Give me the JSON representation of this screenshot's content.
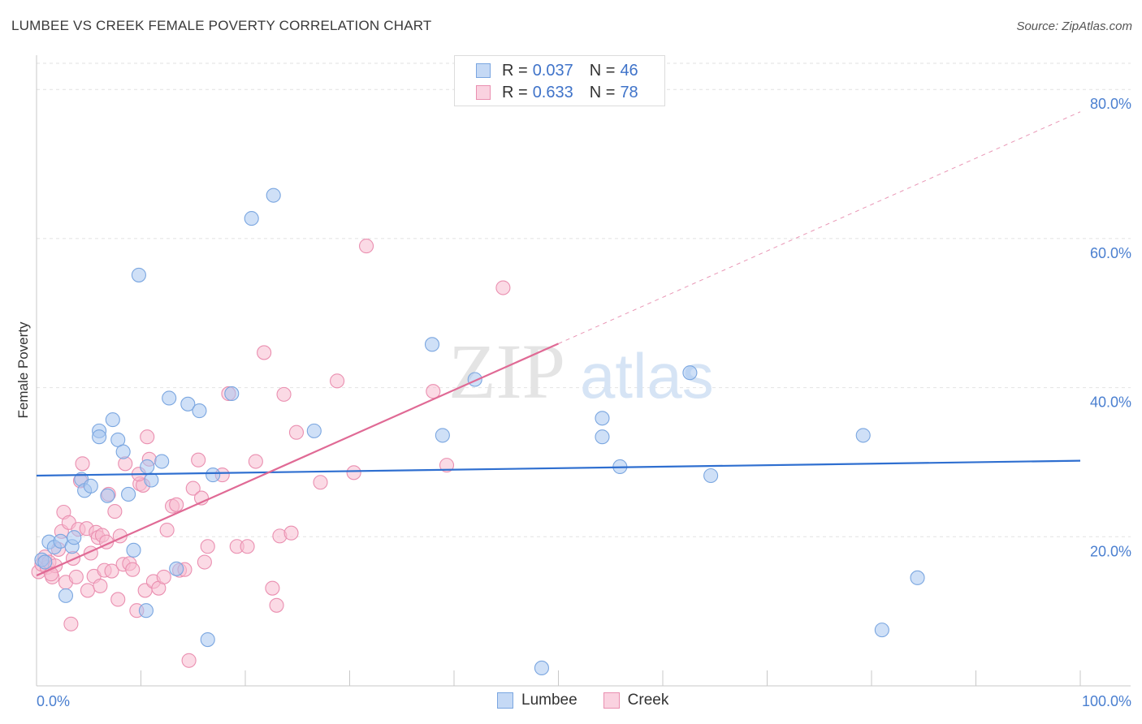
{
  "header": {
    "title": "LUMBEE VS CREEK FEMALE POVERTY CORRELATION CHART",
    "source": "Source: ZipAtlas.com"
  },
  "watermark": {
    "zip": "ZIP",
    "atlas": "atlas"
  },
  "legend": {
    "rows": [
      {
        "r_label": "R =",
        "r_value": "0.037",
        "n_label": "N =",
        "n_value": "46",
        "color": "#a8c6f0",
        "border": "#7aa6e0"
      },
      {
        "r_label": "R =",
        "r_value": "0.633",
        "n_label": "N =",
        "n_value": "78",
        "color": "#f7bcd0",
        "border": "#ea8fb0"
      }
    ]
  },
  "bottom_legend": {
    "items": [
      {
        "label": "Lumbee",
        "color": "#a8c6f0",
        "border": "#7aa6e0"
      },
      {
        "label": "Creek",
        "color": "#f7bcd0",
        "border": "#ea8fb0"
      }
    ]
  },
  "chart_data": {
    "type": "scatter",
    "title": "LUMBEE VS CREEK FEMALE POVERTY CORRELATION CHART",
    "xlabel": "",
    "ylabel": "Female Poverty",
    "xlim": [
      0,
      100
    ],
    "ylim": [
      0,
      80
    ],
    "x_tick_labels": [
      "0.0%",
      "100.0%"
    ],
    "y_tick_labels": [
      "20.0%",
      "40.0%",
      "60.0%",
      "80.0%"
    ],
    "y_ticks": [
      20,
      40,
      60,
      80
    ],
    "grid": true,
    "legend_position": "top-center",
    "series": [
      {
        "name": "Lumbee",
        "color": "#a8c6f0",
        "stroke": "#7aa6e0",
        "trend_color": "#2f6fd0",
        "trend": {
          "x": [
            0,
            100
          ],
          "y": [
            28.2,
            30.2
          ]
        },
        "points": [
          [
            0.5,
            16.9
          ],
          [
            1.2,
            19.3
          ],
          [
            1.7,
            18.6
          ],
          [
            2.3,
            19.4
          ],
          [
            2.8,
            12.1
          ],
          [
            3.4,
            18.7
          ],
          [
            3.6,
            19.9
          ],
          [
            4.3,
            27.7
          ],
          [
            4.6,
            26.2
          ],
          [
            5.2,
            26.8
          ],
          [
            6.0,
            34.2
          ],
          [
            6.0,
            33.4
          ],
          [
            6.8,
            25.5
          ],
          [
            7.3,
            35.7
          ],
          [
            7.8,
            33.0
          ],
          [
            8.3,
            31.4
          ],
          [
            8.8,
            25.7
          ],
          [
            9.3,
            18.2
          ],
          [
            9.8,
            55.1
          ],
          [
            10.5,
            10.1
          ],
          [
            10.6,
            29.4
          ],
          [
            11.0,
            27.6
          ],
          [
            12.0,
            30.1
          ],
          [
            12.7,
            38.6
          ],
          [
            13.4,
            15.7
          ],
          [
            14.5,
            37.8
          ],
          [
            15.6,
            36.9
          ],
          [
            16.4,
            6.2
          ],
          [
            16.9,
            28.3
          ],
          [
            18.7,
            39.2
          ],
          [
            20.6,
            62.7
          ],
          [
            22.7,
            65.8
          ],
          [
            26.6,
            34.2
          ],
          [
            37.9,
            45.8
          ],
          [
            38.9,
            33.6
          ],
          [
            42.0,
            41.1
          ],
          [
            48.4,
            2.4
          ],
          [
            54.2,
            35.9
          ],
          [
            54.2,
            33.4
          ],
          [
            55.9,
            29.4
          ],
          [
            62.6,
            42.0
          ],
          [
            64.6,
            28.2
          ],
          [
            79.2,
            33.6
          ],
          [
            81.0,
            7.5
          ],
          [
            84.4,
            14.5
          ],
          [
            0.8,
            16.6
          ]
        ]
      },
      {
        "name": "Creek",
        "color": "#f7bcd0",
        "stroke": "#ea8fb0",
        "trend_color": "#e06a95",
        "trend": {
          "x": [
            0,
            50
          ],
          "y": [
            14.8,
            45.9
          ]
        },
        "trend_dashed": {
          "x": [
            50,
            100
          ],
          "y": [
            45.9,
            77.0
          ]
        },
        "points": [
          [
            0.2,
            15.3
          ],
          [
            0.5,
            16.3
          ],
          [
            0.8,
            17.3
          ],
          [
            1.0,
            15.9
          ],
          [
            1.2,
            16.6
          ],
          [
            1.5,
            14.6
          ],
          [
            1.8,
            16.1
          ],
          [
            2.1,
            18.3
          ],
          [
            2.4,
            20.7
          ],
          [
            2.6,
            23.3
          ],
          [
            2.8,
            13.9
          ],
          [
            3.1,
            21.9
          ],
          [
            3.3,
            8.3
          ],
          [
            3.5,
            17.1
          ],
          [
            3.8,
            14.6
          ],
          [
            4.0,
            21.0
          ],
          [
            4.2,
            27.5
          ],
          [
            4.4,
            29.8
          ],
          [
            4.8,
            21.1
          ],
          [
            4.9,
            12.8
          ],
          [
            5.2,
            17.8
          ],
          [
            5.5,
            14.7
          ],
          [
            5.7,
            20.6
          ],
          [
            5.9,
            19.9
          ],
          [
            6.1,
            13.4
          ],
          [
            6.3,
            20.2
          ],
          [
            6.5,
            15.5
          ],
          [
            6.9,
            25.7
          ],
          [
            7.2,
            15.4
          ],
          [
            7.5,
            23.4
          ],
          [
            7.8,
            11.6
          ],
          [
            8.0,
            20.1
          ],
          [
            8.3,
            16.3
          ],
          [
            8.5,
            29.8
          ],
          [
            8.9,
            16.4
          ],
          [
            9.2,
            15.6
          ],
          [
            9.6,
            10.1
          ],
          [
            9.9,
            27.1
          ],
          [
            10.2,
            26.9
          ],
          [
            10.4,
            12.8
          ],
          [
            10.6,
            33.4
          ],
          [
            10.8,
            30.4
          ],
          [
            11.2,
            14.0
          ],
          [
            11.7,
            13.1
          ],
          [
            12.5,
            20.9
          ],
          [
            13.0,
            24.1
          ],
          [
            13.4,
            24.3
          ],
          [
            13.7,
            15.5
          ],
          [
            14.2,
            15.6
          ],
          [
            14.6,
            3.4
          ],
          [
            15.0,
            26.5
          ],
          [
            15.5,
            30.3
          ],
          [
            15.8,
            25.2
          ],
          [
            16.1,
            16.6
          ],
          [
            16.4,
            18.7
          ],
          [
            17.8,
            28.3
          ],
          [
            18.4,
            39.2
          ],
          [
            19.2,
            18.7
          ],
          [
            20.2,
            18.7
          ],
          [
            21.0,
            30.1
          ],
          [
            21.8,
            44.7
          ],
          [
            22.6,
            13.1
          ],
          [
            23.0,
            10.8
          ],
          [
            23.3,
            20.1
          ],
          [
            23.7,
            39.1
          ],
          [
            24.4,
            20.5
          ],
          [
            24.9,
            34.0
          ],
          [
            27.2,
            27.3
          ],
          [
            28.8,
            40.9
          ],
          [
            30.4,
            28.6
          ],
          [
            31.6,
            59.0
          ],
          [
            38.0,
            39.5
          ],
          [
            39.3,
            29.6
          ],
          [
            44.7,
            53.4
          ],
          [
            9.8,
            28.4
          ],
          [
            12.2,
            14.6
          ],
          [
            6.7,
            19.3
          ],
          [
            1.4,
            15.0
          ]
        ]
      }
    ]
  }
}
